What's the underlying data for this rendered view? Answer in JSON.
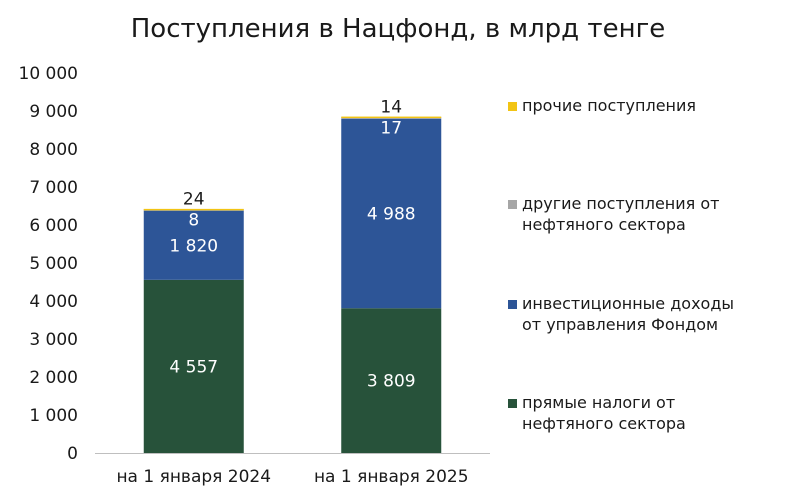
{
  "chart_data": {
    "type": "bar",
    "stacked": true,
    "title": "Поступления в Нацфонд, в млрд тенге",
    "xlabel": "",
    "ylabel": "",
    "ylim": [
      0,
      10000
    ],
    "yticks": [
      "0",
      "1 000",
      "2 000",
      "3 000",
      "4 000",
      "5 000",
      "6 000",
      "7 000",
      "8 000",
      "9 000",
      "10 000"
    ],
    "categories": [
      "на 1 января 2024",
      "на 1 января 2025"
    ],
    "grid": false,
    "legend_position": "right",
    "series": [
      {
        "name": "прямые налоги от нефтяного сектора",
        "values": [
          4557,
          3809
        ],
        "labels": [
          "4 557",
          "3 809"
        ],
        "color": "#27523a"
      },
      {
        "name": "инвестиционные доходы от управления Фондом",
        "values": [
          1820,
          4988
        ],
        "labels": [
          "1 820",
          "4 988"
        ],
        "color": "#2d5597"
      },
      {
        "name": "другие поступления от нефтяного сектора",
        "values": [
          8,
          17
        ],
        "labels": [
          "8",
          "17"
        ],
        "color": "#a6a6a6"
      },
      {
        "name": "прочие поступления",
        "values": [
          24,
          14
        ],
        "labels": [
          "24",
          "14"
        ],
        "color": "#f2c414"
      }
    ],
    "legend": [
      {
        "lines": [
          "прочие поступления"
        ],
        "color": "#f2c414"
      },
      {
        "lines": [
          "другие поступления от",
          "нефтяного сектора"
        ],
        "color": "#a6a6a6"
      },
      {
        "lines": [
          "инвестиционные доходы",
          "от управления Фондом"
        ],
        "color": "#2d5597"
      },
      {
        "lines": [
          "прямые налоги от",
          "нефтяного сектора"
        ],
        "color": "#27523a"
      }
    ]
  }
}
